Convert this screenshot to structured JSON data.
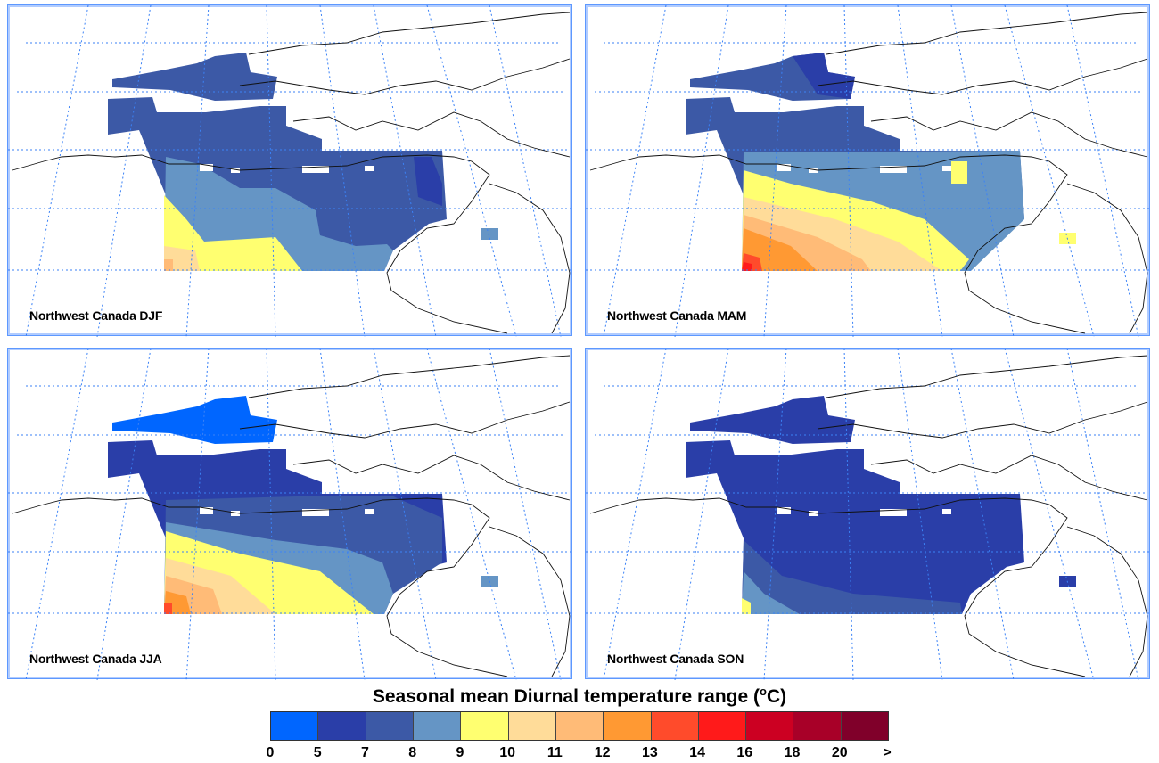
{
  "panels": [
    {
      "season": "DJF",
      "label": "Northwest Canada DJF"
    },
    {
      "season": "MAM",
      "label": "Northwest Canada MAM"
    },
    {
      "season": "JJA",
      "label": "Northwest Canada JJA"
    },
    {
      "season": "SON",
      "label": "Northwest Canada SON"
    }
  ],
  "colorbar": {
    "title": "Seasonal mean Diurnal temperature range",
    "unit_o": "o",
    "unit_c": "C",
    "tick_labels": [
      "0",
      "5",
      "7",
      "8",
      "9",
      "10",
      "11",
      "12",
      "13",
      "14",
      "16",
      "18",
      "20",
      ">"
    ],
    "colors": [
      "#0066ff",
      "#2a3ea8",
      "#3c59a6",
      "#6595c5",
      "#ffff70",
      "#ffdc99",
      "#ffbb77",
      "#ff9933",
      "#ff4b2b",
      "#ff1a1a",
      "#cc0022",
      "#a80028",
      "#80002a"
    ]
  }
}
